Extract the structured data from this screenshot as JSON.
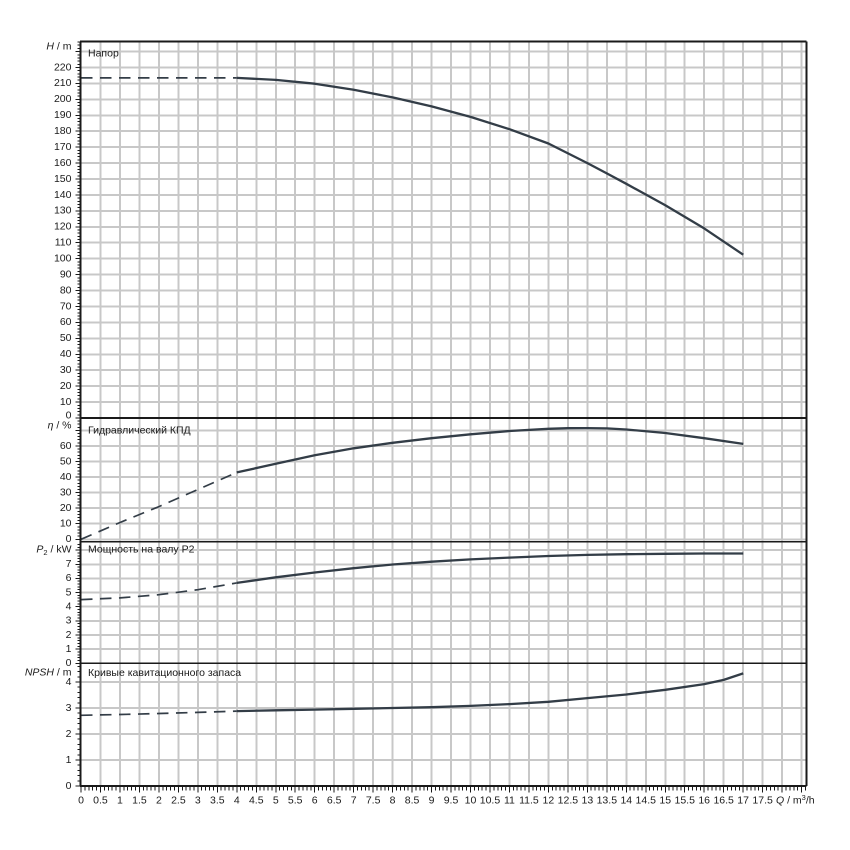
{
  "chart_data": {
    "type": "line",
    "x_axis": {
      "label_segments": [
        {
          "t": "Q",
          "s": "i"
        },
        {
          "t": " / m",
          "s": "n"
        },
        {
          "t": "3",
          "s": "sup"
        },
        {
          "t": "/h",
          "s": "n"
        }
      ],
      "tick_labels": [
        "0",
        "0.5",
        "1",
        "1.5",
        "2",
        "2.5",
        "3",
        "3.5",
        "4",
        "4.5",
        "5",
        "5.5",
        "6",
        "6.5",
        "7",
        "7.5",
        "8",
        "8.5",
        "9",
        "9.5",
        "10",
        "10.5",
        "11",
        "11.5",
        "12",
        "12.5",
        "13",
        "13.5",
        "14",
        "14.5",
        "15",
        "15.5",
        "16",
        "16.5",
        "17",
        "17.5"
      ],
      "tick_values": [
        0,
        0.5,
        1,
        1.5,
        2,
        2.5,
        3,
        3.5,
        4,
        4.5,
        5,
        5.5,
        6,
        6.5,
        7,
        7.5,
        8,
        8.5,
        9,
        9.5,
        10,
        10.5,
        11,
        11.5,
        12,
        12.5,
        13,
        13.5,
        14,
        14.5,
        15,
        15.5,
        16,
        16.5,
        17,
        17.5
      ],
      "grid_step": 0.5,
      "minor_step": 0.1,
      "xlim": [
        0,
        18.62
      ]
    },
    "panels": [
      {
        "id": "head",
        "title": "Напор",
        "axis_segments": [
          {
            "t": "H",
            "s": "i"
          },
          {
            "t": " / m",
            "s": "n"
          }
        ],
        "ylim": [
          0,
          236
        ],
        "grid_max": 230,
        "tick_values": [
          0,
          10,
          20,
          30,
          40,
          50,
          60,
          70,
          80,
          90,
          100,
          110,
          120,
          130,
          140,
          150,
          160,
          170,
          180,
          190,
          200,
          210,
          220
        ],
        "minor_step": 2,
        "series": [
          {
            "name": "head-dashed",
            "style": "dashed",
            "points": [
              [
                0,
                213.5
              ],
              [
                4,
                213.5
              ]
            ]
          },
          {
            "name": "head-solid",
            "style": "solid",
            "points": [
              [
                4,
                213.5
              ],
              [
                5,
                212.2
              ],
              [
                6,
                209.8
              ],
              [
                7,
                206
              ],
              [
                8,
                201.2
              ],
              [
                9,
                195.6
              ],
              [
                10,
                189
              ],
              [
                11,
                181.3
              ],
              [
                12,
                172.3
              ],
              [
                13,
                160
              ],
              [
                13.5,
                153.5
              ],
              [
                14,
                147
              ],
              [
                15,
                133.5
              ],
              [
                16,
                119
              ],
              [
                17,
                102.5
              ]
            ]
          }
        ]
      },
      {
        "id": "efficiency",
        "title": "Гидравлический КПД",
        "axis_segments": [
          {
            "t": "η",
            "s": "i"
          },
          {
            "t": " / %",
            "s": "n"
          }
        ],
        "ylim": [
          0,
          78
        ],
        "grid_max": 70,
        "tick_values": [
          0,
          10,
          20,
          30,
          40,
          50,
          60
        ],
        "minor_step": 2,
        "series": [
          {
            "name": "efficiency-dashed",
            "style": "dashed",
            "points": [
              [
                0,
                0
              ],
              [
                1,
                10.8
              ],
              [
                2,
                21
              ],
              [
                3,
                32
              ],
              [
                4,
                43
              ]
            ]
          },
          {
            "name": "efficiency-solid",
            "style": "solid",
            "points": [
              [
                4,
                43
              ],
              [
                5,
                48.5
              ],
              [
                6,
                54
              ],
              [
                7,
                58.5
              ],
              [
                8,
                62
              ],
              [
                9,
                65
              ],
              [
                10,
                67.5
              ],
              [
                11,
                69.6
              ],
              [
                12,
                71
              ],
              [
                12.5,
                71.4
              ],
              [
                13,
                71.5
              ],
              [
                13.5,
                71.3
              ],
              [
                14,
                70.6
              ],
              [
                15,
                68.3
              ],
              [
                16,
                65
              ],
              [
                17,
                61.3
              ]
            ]
          }
        ]
      },
      {
        "id": "power",
        "title": "Мощность на валу P2",
        "axis_segments": [
          {
            "t": "P",
            "s": "i"
          },
          {
            "t": "2",
            "s": "sub"
          },
          {
            "t": " / kW",
            "s": "n"
          }
        ],
        "ylim": [
          0,
          8.6
        ],
        "grid_max": 8,
        "tick_values": [
          0,
          1,
          2,
          3,
          4,
          5,
          6,
          7
        ],
        "minor_step": 0.2,
        "series": [
          {
            "name": "power-dashed",
            "style": "dashed",
            "points": [
              [
                0,
                4.5
              ],
              [
                1,
                4.62
              ],
              [
                2,
                4.85
              ],
              [
                3,
                5.2
              ],
              [
                4,
                5.68
              ]
            ]
          },
          {
            "name": "power-solid",
            "style": "solid",
            "points": [
              [
                4,
                5.68
              ],
              [
                5,
                6.08
              ],
              [
                6,
                6.42
              ],
              [
                7,
                6.72
              ],
              [
                8,
                6.98
              ],
              [
                9,
                7.18
              ],
              [
                10,
                7.34
              ],
              [
                11,
                7.47
              ],
              [
                12,
                7.58
              ],
              [
                13,
                7.66
              ],
              [
                14,
                7.71
              ],
              [
                15,
                7.74
              ],
              [
                16,
                7.76
              ],
              [
                17,
                7.76
              ]
            ]
          }
        ]
      },
      {
        "id": "npsh",
        "title": "Кривые кавитационного запаса",
        "axis_segments": [
          {
            "t": "NPSH",
            "s": "i"
          },
          {
            "t": " / m",
            "s": "n"
          }
        ],
        "ylim": [
          0,
          4.71
        ],
        "grid_max": 4,
        "tick_values": [
          0,
          1,
          2,
          3,
          4
        ],
        "minor_step": 0.2,
        "series": [
          {
            "name": "npsh-dashed",
            "style": "dashed",
            "points": [
              [
                0,
                2.72
              ],
              [
                1,
                2.75
              ],
              [
                2,
                2.79
              ],
              [
                3,
                2.83
              ],
              [
                4,
                2.88
              ]
            ]
          },
          {
            "name": "npsh-solid",
            "style": "solid",
            "points": [
              [
                4,
                2.88
              ],
              [
                5,
                2.91
              ],
              [
                6,
                2.94
              ],
              [
                7,
                2.97
              ],
              [
                8,
                3.0
              ],
              [
                9,
                3.03
              ],
              [
                10,
                3.08
              ],
              [
                11,
                3.15
              ],
              [
                12,
                3.24
              ],
              [
                13,
                3.38
              ],
              [
                14,
                3.52
              ],
              [
                15,
                3.7
              ],
              [
                16,
                3.92
              ],
              [
                16.5,
                4.08
              ],
              [
                17,
                4.33
              ]
            ]
          }
        ]
      }
    ],
    "colors": {
      "curve": "#333d47",
      "grid": "#c8c8c8",
      "axis": "#1a1a1a",
      "text": "#1a1a1a",
      "background": "#ffffff"
    }
  }
}
